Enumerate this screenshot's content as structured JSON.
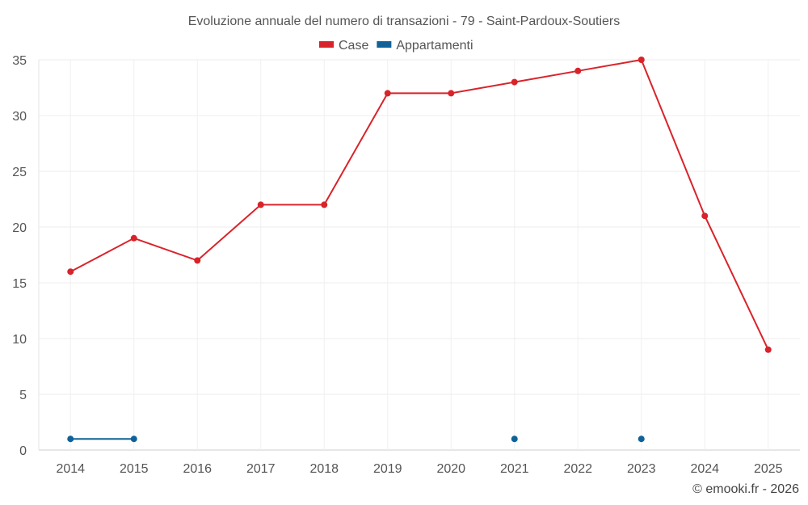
{
  "chart_data": {
    "type": "line",
    "title": "Evoluzione annuale del numero di transazioni - 79 - Saint-Pardoux-Soutiers",
    "categories": [
      "2014",
      "2015",
      "2016",
      "2017",
      "2018",
      "2019",
      "2020",
      "2021",
      "2022",
      "2023",
      "2024",
      "2025"
    ],
    "series": [
      {
        "name": "Case",
        "color": "#d9232a",
        "values": [
          16,
          19,
          17,
          22,
          22,
          32,
          32,
          33,
          34,
          35,
          21,
          9
        ]
      },
      {
        "name": "Appartamenti",
        "color": "#0e6299",
        "values": [
          1,
          1,
          null,
          null,
          null,
          null,
          null,
          1,
          null,
          1,
          null,
          null
        ]
      }
    ],
    "yticks": [
      0,
      5,
      10,
      15,
      20,
      25,
      30,
      35
    ],
    "ylim": [
      0,
      35
    ],
    "xlabel": "",
    "ylabel": "",
    "grid": true,
    "legend": "top-center"
  },
  "credit": "© emooki.fr - 2026"
}
